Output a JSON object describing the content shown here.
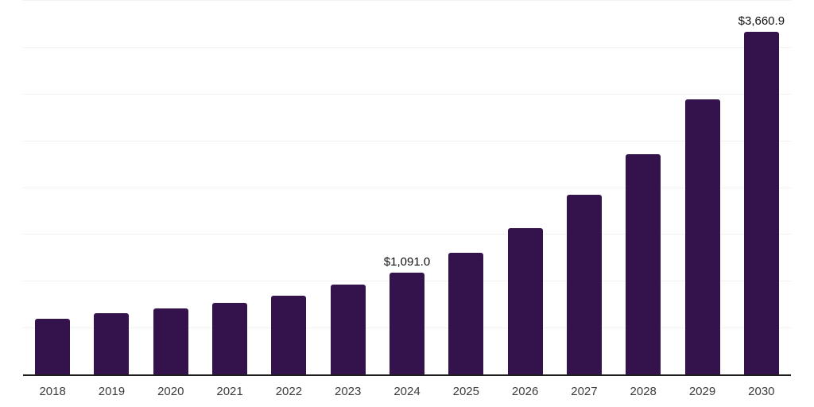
{
  "chart_data": {
    "type": "bar",
    "categories": [
      "2018",
      "2019",
      "2020",
      "2021",
      "2022",
      "2023",
      "2024",
      "2025",
      "2026",
      "2027",
      "2028",
      "2029",
      "2030"
    ],
    "values": [
      591,
      655,
      701,
      765,
      838,
      956,
      1091.0,
      1297,
      1567,
      1920,
      2356,
      2936,
      3660.9
    ],
    "data_labels": [
      "",
      "",
      "",
      "",
      "",
      "",
      "$1,091.0",
      "",
      "",
      "",
      "",
      "",
      "$3,660.9"
    ],
    "title": "",
    "xlabel": "",
    "ylabel": "",
    "ylim": [
      0,
      4000
    ],
    "ytick_step": 500,
    "grid": "horizontal-only",
    "legend": "none",
    "colors": {
      "bar": "#34124C",
      "gridline": "#f2f2f2",
      "axis_line": "#1f1f1f",
      "data_label_text": "#111111",
      "tick_label_text": "#3d3d3d",
      "background": "#ffffff"
    }
  }
}
